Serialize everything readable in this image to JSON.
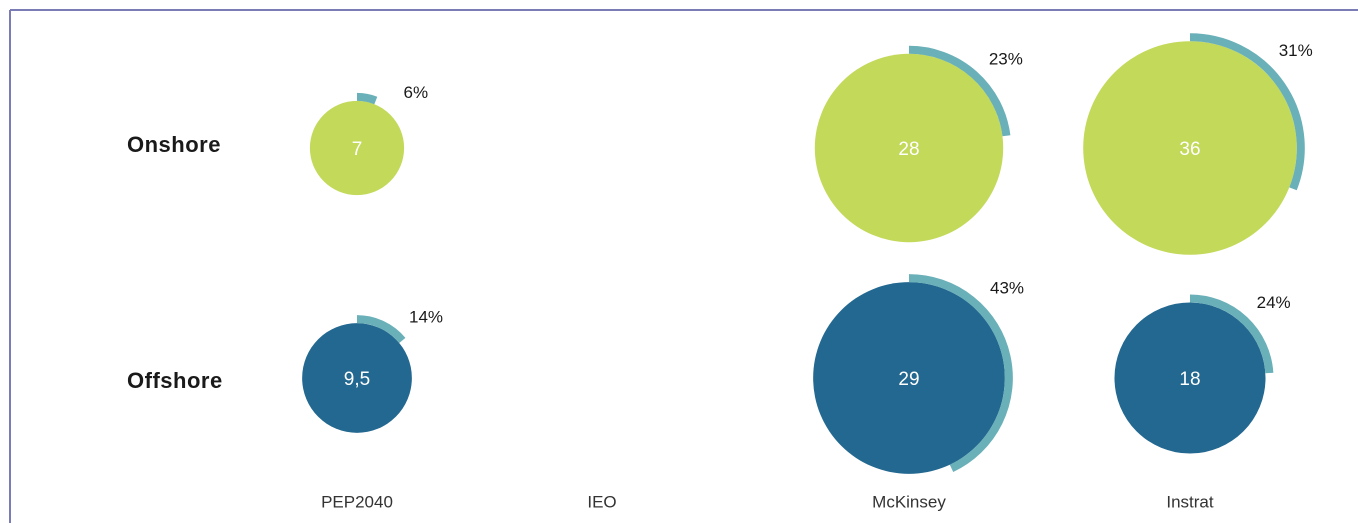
{
  "chart_data": {
    "type": "bubble",
    "categories": [
      "PEP2040",
      "IEO",
      "McKinsey",
      "Instrat"
    ],
    "arc_color": "#6ab0b8",
    "series": [
      {
        "name": "Onshore",
        "color": "#c2d95a",
        "values": [
          7,
          null,
          28,
          36
        ],
        "shares": [
          6,
          null,
          23,
          31
        ],
        "share_labels": [
          "6%",
          null,
          "23%",
          "31%"
        ]
      },
      {
        "name": "Offshore",
        "color": "#236890",
        "values": [
          9.5,
          null,
          29,
          18
        ],
        "value_labels": [
          "9,5",
          null,
          "29",
          "18"
        ],
        "shares": [
          14,
          null,
          43,
          24
        ],
        "share_labels": [
          "14%",
          null,
          "43%",
          "24%"
        ]
      }
    ]
  }
}
